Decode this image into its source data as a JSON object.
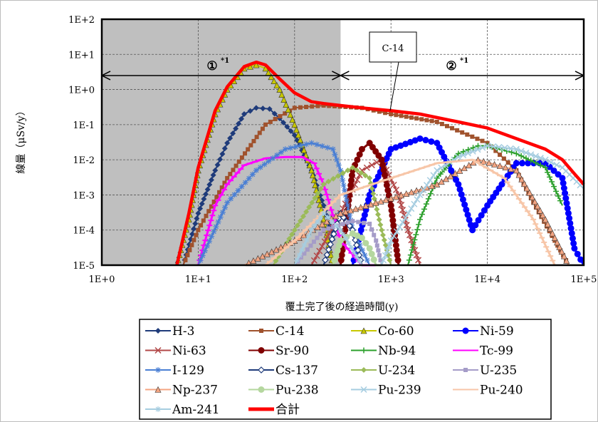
{
  "chart_data": {
    "type": "line",
    "xlabel": "覆土完了後の経過時間(y)",
    "ylabel": "線量（μSv/y）",
    "x_scale": "log",
    "y_scale": "log",
    "xlim": [
      1,
      100000
    ],
    "ylim": [
      1e-05,
      100
    ],
    "x_ticks": [
      "1E+0",
      "1E+1",
      "1E+2",
      "1E+3",
      "1E+4",
      "1E+5"
    ],
    "y_ticks": [
      "1E-5",
      "1E-4",
      "1E-3",
      "1E-2",
      "1E-1",
      "1E+0",
      "1E+1",
      "1E+2"
    ],
    "grid": true,
    "legend_position": "bottom",
    "shaded_region": {
      "x_from": 1,
      "x_to": 300,
      "color": "#bfbfbf"
    },
    "annotations": [
      {
        "label": "①",
        "superscript": "*1",
        "x_from": 1,
        "x_to": 300
      },
      {
        "label": "②",
        "superscript": "*1",
        "x_from": 300,
        "x_to": 100000
      },
      {
        "label": "C-14",
        "points_to_series": "合計"
      }
    ],
    "series": [
      {
        "name": "H-3",
        "color": "#1f3b7a",
        "marker": "diamond",
        "x": [
          7,
          10,
          15,
          20,
          30,
          40,
          55,
          70,
          100,
          150,
          200,
          260
        ],
        "y": [
          1e-05,
          0.0003,
          0.005,
          0.03,
          0.2,
          0.3,
          0.28,
          0.15,
          0.05,
          0.005,
          0.0005,
          5e-05
        ]
      },
      {
        "name": "C-14",
        "color": "#a0522d",
        "marker": "square",
        "x": [
          7,
          10,
          20,
          50,
          100,
          200,
          500,
          1000,
          3000,
          10000,
          20000,
          30000,
          50000,
          70000
        ],
        "y": [
          1e-05,
          0.0001,
          0.003,
          0.1,
          0.3,
          0.35,
          0.3,
          0.2,
          0.12,
          0.03,
          0.005,
          0.0006,
          5e-05,
          1e-05
        ]
      },
      {
        "name": "Co-60",
        "color": "#c8c800",
        "marker": "triangle",
        "x": [
          6,
          8,
          10,
          15,
          20,
          30,
          40,
          50,
          70,
          100,
          150,
          200,
          250
        ],
        "y": [
          1e-05,
          0.0002,
          0.005,
          0.2,
          1,
          4,
          5,
          4,
          1,
          0.1,
          0.005,
          0.0002,
          1e-05
        ]
      },
      {
        "name": "Ni-59",
        "color": "#0000ff",
        "marker": "circle",
        "x": [
          400,
          600,
          1000,
          2000,
          3000,
          5000,
          7000,
          10000,
          20000,
          40000,
          60000,
          80000,
          100000
        ],
        "y": [
          1e-05,
          0.001,
          0.02,
          0.04,
          0.03,
          0.002,
          0.0001,
          0.0005,
          0.008,
          0.008,
          0.003,
          3e-05,
          1e-05
        ]
      },
      {
        "name": "Ni-63",
        "color": "#b24848",
        "marker": "x",
        "x": [
          150,
          300,
          500,
          800,
          1200,
          1500,
          2000,
          3000
        ],
        "y": [
          1e-05,
          0.0003,
          0.005,
          0.01,
          0.001,
          0.0001,
          1e-05,
          1e-05
        ]
      },
      {
        "name": "Sr-90",
        "color": "#800000",
        "marker": "circle",
        "x": [
          300,
          400,
          500,
          600,
          800,
          1000,
          1200
        ],
        "y": [
          1e-05,
          0.005,
          0.02,
          0.03,
          0.01,
          0.0005,
          1e-05
        ]
      },
      {
        "name": "Nb-94",
        "color": "#2ca02c",
        "marker": "plus",
        "x": [
          1500,
          2000,
          3000,
          5000,
          8000,
          10000,
          20000,
          40000,
          60000
        ],
        "y": [
          1e-05,
          0.0002,
          0.003,
          0.015,
          0.025,
          0.025,
          0.015,
          0.006,
          0.0005
        ]
      },
      {
        "name": "Tc-99",
        "color": "#ff00ff",
        "marker": "dash",
        "x": [
          10,
          15,
          20,
          30,
          50,
          80,
          120,
          160,
          200,
          300,
          500,
          700
        ],
        "y": [
          1e-05,
          0.0005,
          0.002,
          0.007,
          0.011,
          0.012,
          0.012,
          0.008,
          0.002,
          5e-05,
          1e-05,
          1e-05
        ]
      },
      {
        "name": "I-129",
        "color": "#4a7fd4",
        "marker": "asterisk",
        "x": [
          10,
          20,
          40,
          80,
          150,
          250,
          300,
          400,
          600
        ],
        "y": [
          1e-05,
          0.0006,
          0.005,
          0.02,
          0.03,
          0.02,
          0.005,
          0.0001,
          1e-05
        ]
      },
      {
        "name": "Cs-137",
        "color": "#1f3b7a",
        "marker": "diamond-open",
        "x": [
          200,
          300,
          400,
          500
        ],
        "y": [
          1e-05,
          0.0003,
          0.0001,
          1e-05
        ]
      },
      {
        "name": "U-234",
        "color": "#9bbb59",
        "marker": "diamond",
        "x": [
          60,
          100,
          200,
          400,
          600,
          800,
          1000
        ],
        "y": [
          1e-05,
          0.0001,
          0.002,
          0.006,
          0.003,
          0.0001,
          1e-05
        ]
      },
      {
        "name": "U-235",
        "color": "#a59cc8",
        "marker": "square",
        "x": [
          100,
          200,
          400,
          600,
          700,
          800
        ],
        "y": [
          1e-05,
          0.0001,
          0.00018,
          0.00015,
          5e-05,
          1e-05
        ]
      },
      {
        "name": "Np-237",
        "color": "#f4a582",
        "marker": "triangle",
        "x": [
          30,
          100,
          300,
          1000,
          3000,
          8000,
          20000,
          40000,
          70000
        ],
        "y": [
          1e-05,
          5e-05,
          0.0003,
          0.0008,
          0.002,
          0.01,
          0.005,
          0.0002,
          1e-05
        ]
      },
      {
        "name": "Pu-238",
        "color": "#b5d79f",
        "marker": "circle",
        "x": [
          250,
          300,
          400,
          500,
          600,
          700,
          800
        ],
        "y": [
          1e-05,
          5e-05,
          8e-05,
          6e-05,
          3e-05,
          1e-05,
          1e-05
        ]
      },
      {
        "name": "Pu-239",
        "color": "#a6cde0",
        "marker": "x",
        "x": [
          800,
          1000,
          2000,
          3000,
          5000,
          10000,
          20000,
          40000,
          60000,
          100000
        ],
        "y": [
          1e-05,
          5e-05,
          0.001,
          0.005,
          0.012,
          0.025,
          0.02,
          0.01,
          0.006,
          0.0015
        ]
      },
      {
        "name": "Pu-240",
        "color": "#f7c6a8",
        "marker": "dash",
        "x": [
          50,
          100,
          300,
          1000,
          3000,
          7000,
          15000,
          30000,
          50000
        ],
        "y": [
          1e-05,
          5e-05,
          0.001,
          0.003,
          0.008,
          0.01,
          0.003,
          0.0002,
          1e-05
        ]
      },
      {
        "name": "Am-241",
        "color": "#a6cde0",
        "marker": "asterisk",
        "x": [
          100,
          150,
          200,
          300,
          500
        ],
        "y": [
          1e-05,
          0.0001,
          0.0003,
          0.0001,
          1e-05
        ]
      },
      {
        "name": "合計",
        "color": "#ff0000",
        "marker": "thick",
        "x": [
          6,
          8,
          10,
          15,
          20,
          30,
          40,
          50,
          70,
          100,
          150,
          200,
          300,
          500,
          1000,
          2000,
          5000,
          10000,
          20000,
          40000,
          60000,
          80000,
          100000
        ],
        "y": [
          1e-05,
          0.0003,
          0.006,
          0.25,
          1.2,
          4.5,
          6,
          5,
          2,
          0.8,
          0.45,
          0.4,
          0.35,
          0.3,
          0.25,
          0.2,
          0.12,
          0.08,
          0.04,
          0.02,
          0.01,
          0.004,
          0.002
        ]
      }
    ]
  }
}
